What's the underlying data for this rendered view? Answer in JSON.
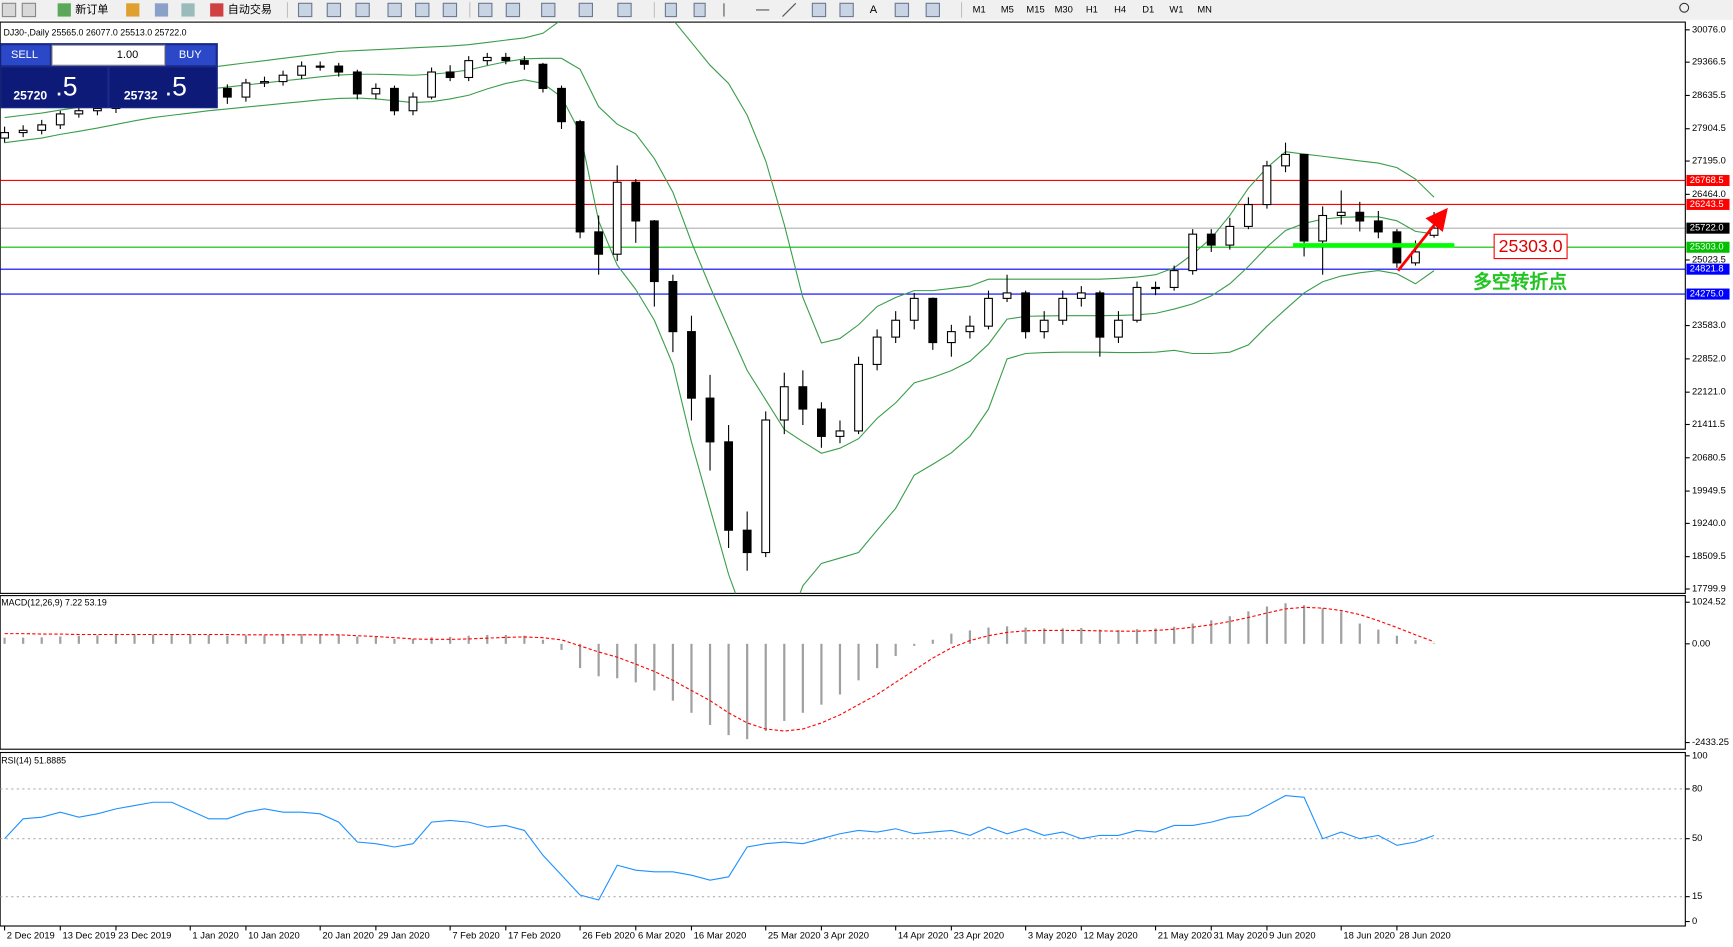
{
  "toolbar": {
    "new_order": "新订单",
    "auto_trading": "自动交易",
    "timeframes": [
      "M1",
      "M5",
      "M15",
      "M30",
      "H1",
      "H4",
      "D1",
      "W1",
      "MN"
    ]
  },
  "trade_panel": {
    "sell": "SELL",
    "lot": "1.00",
    "buy": "BUY",
    "bid_main": "25720",
    "bid_big": ".5",
    "ask_main": "25732",
    "ask_big": ".5"
  },
  "chart_data": [
    {
      "type": "candlestick",
      "title": "DJ30-,Daily  25565.0 26077.0 25513.0 25722.0",
      "categories": [
        "2 Dec 2019",
        null,
        null,
        "13 Dec 2019",
        null,
        null,
        "23 Dec 2019",
        null,
        null,
        null,
        "1 Jan 2020",
        null,
        null,
        "10 Jan 2020",
        null,
        null,
        null,
        "20 Jan 2020",
        null,
        null,
        "29 Jan 2020",
        null,
        null,
        null,
        "7 Feb 2020",
        null,
        null,
        "17 Feb 2020",
        null,
        null,
        null,
        "26 Feb 2020",
        null,
        null,
        "6 Mar 2020",
        null,
        null,
        "16 Mar 2020",
        null,
        null,
        null,
        "25 Mar 2020",
        null,
        null,
        "3 Apr 2020",
        null,
        null,
        null,
        "14 Apr 2020",
        null,
        null,
        "23 Apr 2020",
        null,
        null,
        null,
        "3 May 2020",
        null,
        null,
        "12 May 2020",
        null,
        null,
        null,
        "21 May 2020",
        null,
        null,
        "31 May 2020",
        null,
        null,
        "9 Jun 2020",
        null,
        null,
        null,
        "18 Jun 2020",
        null,
        null,
        "28 Jun 2020",
        null,
        null
      ],
      "open": [
        27700,
        27820,
        27870,
        27990,
        28230,
        28300,
        28350,
        28500,
        28600,
        28670,
        28740,
        28790,
        28790,
        28600,
        28910,
        28940,
        29080,
        29280,
        29280,
        29150,
        28670,
        28790,
        28300,
        28600,
        29150,
        29030,
        29400,
        29470,
        29400,
        29320,
        28790,
        28060,
        25640,
        25150,
        26730,
        25880,
        24550,
        23450,
        21990,
        21030,
        19090,
        18600,
        21510,
        22240,
        21750,
        21150,
        21270,
        22730,
        23330,
        23700,
        24180,
        23210,
        23450,
        23570,
        24180,
        24300,
        23450,
        23700,
        24180,
        24300,
        23330,
        23700,
        24420,
        24420,
        24790,
        25590,
        25350,
        25760,
        26240,
        27090,
        27340,
        25440,
        26000,
        26070,
        25880,
        25640,
        24960,
        25565
      ],
      "high": [
        27950,
        27980,
        28100,
        28300,
        28400,
        28450,
        28600,
        28700,
        28780,
        28850,
        28900,
        28900,
        28880,
        29000,
        29050,
        29180,
        29380,
        29380,
        29350,
        29200,
        28900,
        28850,
        28700,
        29250,
        29300,
        29500,
        29570,
        29570,
        29500,
        29350,
        28850,
        28100,
        26000,
        27100,
        26800,
        25900,
        24700,
        23800,
        22500,
        21400,
        19500,
        21700,
        22550,
        22600,
        21900,
        21500,
        22900,
        23500,
        23900,
        24300,
        24200,
        23600,
        23800,
        24350,
        24700,
        24350,
        23900,
        24350,
        24450,
        24350,
        23900,
        24550,
        24550,
        24900,
        25700,
        25700,
        25950,
        26400,
        27200,
        27600,
        27350,
        26200,
        26550,
        26300,
        26100,
        25700,
        25450,
        26077
      ],
      "low": [
        27600,
        27720,
        27780,
        27900,
        28150,
        28200,
        28250,
        28400,
        28500,
        28550,
        28650,
        28680,
        28450,
        28500,
        28820,
        28850,
        29000,
        29180,
        29050,
        28550,
        28550,
        28200,
        28200,
        28550,
        28950,
        28950,
        29300,
        29320,
        29200,
        28700,
        27900,
        25500,
        24700,
        25000,
        25400,
        24000,
        23000,
        21500,
        20400,
        18700,
        18200,
        18500,
        21200,
        21400,
        20900,
        21000,
        21200,
        22600,
        23200,
        23500,
        23050,
        22900,
        23300,
        23500,
        24100,
        23300,
        23300,
        23600,
        24000,
        22900,
        23200,
        23650,
        24250,
        24350,
        24700,
        25200,
        25250,
        25700,
        26150,
        26950,
        25100,
        24700,
        25800,
        25650,
        25500,
        24850,
        24900,
        25513
      ],
      "close": [
        27820,
        27870,
        27990,
        28230,
        28300,
        28350,
        28500,
        28600,
        28670,
        28740,
        28790,
        28790,
        28600,
        28910,
        28940,
        29080,
        29280,
        29280,
        29150,
        28670,
        28790,
        28300,
        28600,
        29150,
        29030,
        29400,
        29470,
        29400,
        29320,
        28790,
        28060,
        25640,
        25150,
        26730,
        25880,
        24550,
        23450,
        21990,
        21030,
        19090,
        18600,
        21510,
        22240,
        21750,
        21150,
        21270,
        22730,
        23330,
        23700,
        24180,
        23210,
        23450,
        23570,
        24180,
        24300,
        23450,
        23700,
        24180,
        24300,
        23330,
        23700,
        24420,
        24420,
        24790,
        25590,
        25350,
        25760,
        26240,
        27090,
        27340,
        25440,
        26000,
        26070,
        25880,
        25640,
        24960,
        25200,
        25722
      ],
      "bands": {
        "color": "#3a9d4a",
        "upper": [
          28700,
          28750,
          28800,
          28850,
          28900,
          28950,
          29000,
          29050,
          29100,
          29150,
          29200,
          29250,
          29300,
          29350,
          29400,
          29450,
          29500,
          29550,
          29600,
          29620,
          29640,
          29660,
          29680,
          29700,
          29720,
          29750,
          29800,
          29850,
          29900,
          30000,
          30300,
          30600,
          30900,
          31100,
          31200,
          30800,
          30300,
          29800,
          29300,
          28900,
          28200,
          27200,
          25800,
          24200,
          23200,
          23300,
          23600,
          24000,
          24200,
          24350,
          24350,
          24400,
          24450,
          24600,
          24600,
          24600,
          24600,
          24600,
          24600,
          24600,
          24620,
          24650,
          24700,
          24850,
          25150,
          25500,
          26000,
          26600,
          27050,
          27400,
          27350,
          27300,
          27250,
          27200,
          27150,
          27050,
          26800,
          26400
        ],
        "middle": [
          28150,
          28200,
          28250,
          28315,
          28375,
          28435,
          28500,
          28565,
          28625,
          28675,
          28725,
          28775,
          28820,
          28865,
          28910,
          28955,
          29000,
          29045,
          29085,
          29100,
          29100,
          29090,
          29080,
          29100,
          29140,
          29195,
          29290,
          29375,
          29440,
          29450,
          29450,
          29210,
          28390,
          28005,
          27790,
          27250,
          26510,
          25415,
          24435,
          23510,
          22600,
          21950,
          21300,
          21035,
          20780,
          20890,
          21100,
          21545,
          21885,
          22325,
          22445,
          22595,
          22800,
          23175,
          23725,
          23785,
          23795,
          23800,
          23800,
          23800,
          23805,
          23820,
          23850,
          23945,
          24060,
          24235,
          24500,
          24880,
          25310,
          25670,
          25825,
          25920,
          25960,
          25970,
          25970,
          25885,
          25650,
          25595
        ],
        "lower": [
          27600,
          27650,
          27700,
          27780,
          27850,
          27920,
          28000,
          28080,
          28150,
          28200,
          28250,
          28300,
          28340,
          28380,
          28420,
          28460,
          28500,
          28540,
          28570,
          28580,
          28560,
          28520,
          28480,
          28500,
          28560,
          28640,
          28780,
          28900,
          28980,
          28900,
          28600,
          27820,
          25880,
          24910,
          24375,
          23700,
          22725,
          21027,
          19570,
          18120,
          17000,
          16700,
          16800,
          17870,
          18360,
          18480,
          18600,
          19090,
          19570,
          20300,
          20540,
          20790,
          21150,
          21750,
          22850,
          22970,
          22990,
          23000,
          23000,
          23000,
          22990,
          22990,
          23000,
          23040,
          22970,
          22970,
          23000,
          23160,
          23570,
          23940,
          24300,
          24545,
          24670,
          24740,
          24790,
          24720,
          24500,
          24790
        ]
      },
      "ylim": [
        17703,
        30246
      ],
      "yticks": [
        {
          "value": 30076,
          "label": "30076.0"
        },
        29366.5,
        28635.5,
        27904.5,
        {
          "value": 27195,
          "label": "27195.0"
        },
        {
          "value": 26464,
          "label": "26464.0"
        },
        25023.5,
        {
          "value": 23583,
          "label": "23583.0"
        },
        {
          "value": 22852,
          "label": "22852.0"
        },
        {
          "value": 22121,
          "label": "22121.0"
        },
        21411.5,
        20680.5,
        19949.5,
        {
          "value": 19240,
          "label": "19240.0"
        },
        18509.5,
        17799.9
      ],
      "levels": [
        {
          "value": 26768.5,
          "label": "26768.5",
          "color": "#ff0000"
        },
        {
          "value": 26243.5,
          "label": "26243.5",
          "color": "#ff0000"
        },
        {
          "value": 25722,
          "label": "25722.0",
          "color": "#000000"
        },
        {
          "value": 25303,
          "label": "25303.0",
          "color": "#00c000"
        },
        {
          "value": 24821.8,
          "label": "24821.8",
          "color": "#0000ff"
        },
        {
          "value": 24275,
          "label": "24275.0",
          "color": "#0000ff"
        }
      ],
      "annotations": [
        "25303.0",
        "多空转折点"
      ]
    },
    {
      "type": "macd",
      "title": "MACD(12,26,9) 7.22 53.19",
      "values": [
        150,
        150,
        160,
        180,
        200,
        210,
        220,
        230,
        230,
        230,
        230,
        220,
        200,
        210,
        210,
        220,
        240,
        240,
        220,
        180,
        170,
        120,
        120,
        160,
        170,
        200,
        220,
        220,
        200,
        100,
        -150,
        -600,
        -800,
        -850,
        -950,
        -1150,
        -1400,
        -1700,
        -2000,
        -2250,
        -2350,
        -2150,
        -1900,
        -1700,
        -1500,
        -1250,
        -900,
        -600,
        -300,
        -50,
        100,
        250,
        330,
        400,
        430,
        400,
        380,
        380,
        390,
        350,
        340,
        360,
        380,
        420,
        500,
        580,
        680,
        800,
        920,
        1000,
        950,
        880,
        800,
        500,
        350,
        200,
        90,
        7.22
      ],
      "signal": [
        250,
        250,
        240,
        240,
        230,
        230,
        230,
        230,
        230,
        230,
        230,
        230,
        230,
        220,
        220,
        220,
        220,
        220,
        220,
        200,
        180,
        150,
        120,
        110,
        110,
        120,
        140,
        160,
        170,
        150,
        100,
        -50,
        -200,
        -330,
        -500,
        -680,
        -900,
        -1150,
        -1400,
        -1700,
        -1950,
        -2100,
        -2150,
        -2100,
        -1950,
        -1750,
        -1500,
        -1250,
        -950,
        -650,
        -350,
        -100,
        80,
        200,
        280,
        320,
        330,
        330,
        330,
        320,
        310,
        310,
        330,
        360,
        410,
        470,
        550,
        650,
        760,
        860,
        900,
        880,
        820,
        720,
        570,
        400,
        220,
        53.19
      ],
      "color": "#a0a0a0",
      "signal_color": "#ff0000",
      "ylim": [
        -2597,
        1188
      ],
      "yticks": [
        1024.52,
        {
          "value": 0,
          "label": "0.00"
        },
        -2433.25
      ]
    },
    {
      "type": "line",
      "title": "RSI(14) 51.8885",
      "values": [
        50,
        62,
        63,
        66,
        63,
        65,
        68,
        70,
        72,
        72,
        67,
        62,
        62,
        66,
        68,
        66,
        66,
        65,
        60,
        48,
        47,
        45,
        47,
        60,
        61,
        60,
        57,
        58,
        55,
        40,
        28,
        16,
        13,
        34,
        31,
        30,
        30,
        28,
        25,
        27,
        45,
        47,
        48,
        47,
        50,
        53,
        55,
        54,
        56,
        53,
        54,
        55,
        52,
        57,
        53,
        56,
        52,
        54,
        50,
        52,
        52,
        55,
        54,
        58,
        58,
        60,
        63,
        64,
        70,
        76,
        75,
        50,
        54,
        50,
        52,
        46,
        48,
        51.8885
      ],
      "color": "#1e90ff",
      "ylim": [
        -2.7,
        102
      ],
      "yticks": [
        100,
        80,
        50,
        15,
        0
      ],
      "grid": true
    }
  ]
}
